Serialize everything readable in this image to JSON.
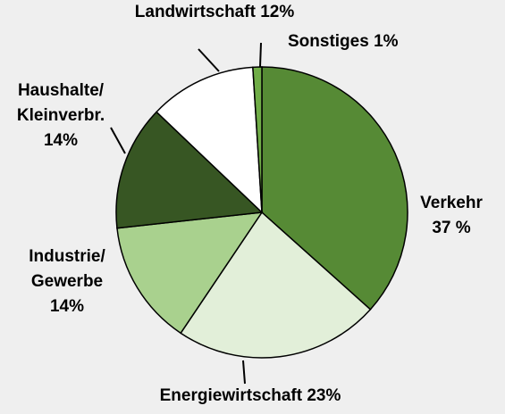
{
  "chart_data": {
    "type": "pie",
    "categories": [
      "Verkehr",
      "Energiewirtschaft",
      "Industrie/\nGewerbe",
      "Haushalte/\nKleinverbr.",
      "Landwirtschaft",
      "Sonstiges"
    ],
    "values": [
      37,
      23,
      14,
      14,
      12,
      1
    ],
    "value_labels": [
      "37 %",
      "23%",
      "14%",
      "14%",
      "12%",
      "1%"
    ],
    "colors": [
      "#568a35",
      "#e2efd9",
      "#a9d18e",
      "#375623",
      "#ffffff",
      "#70ad47"
    ]
  }
}
